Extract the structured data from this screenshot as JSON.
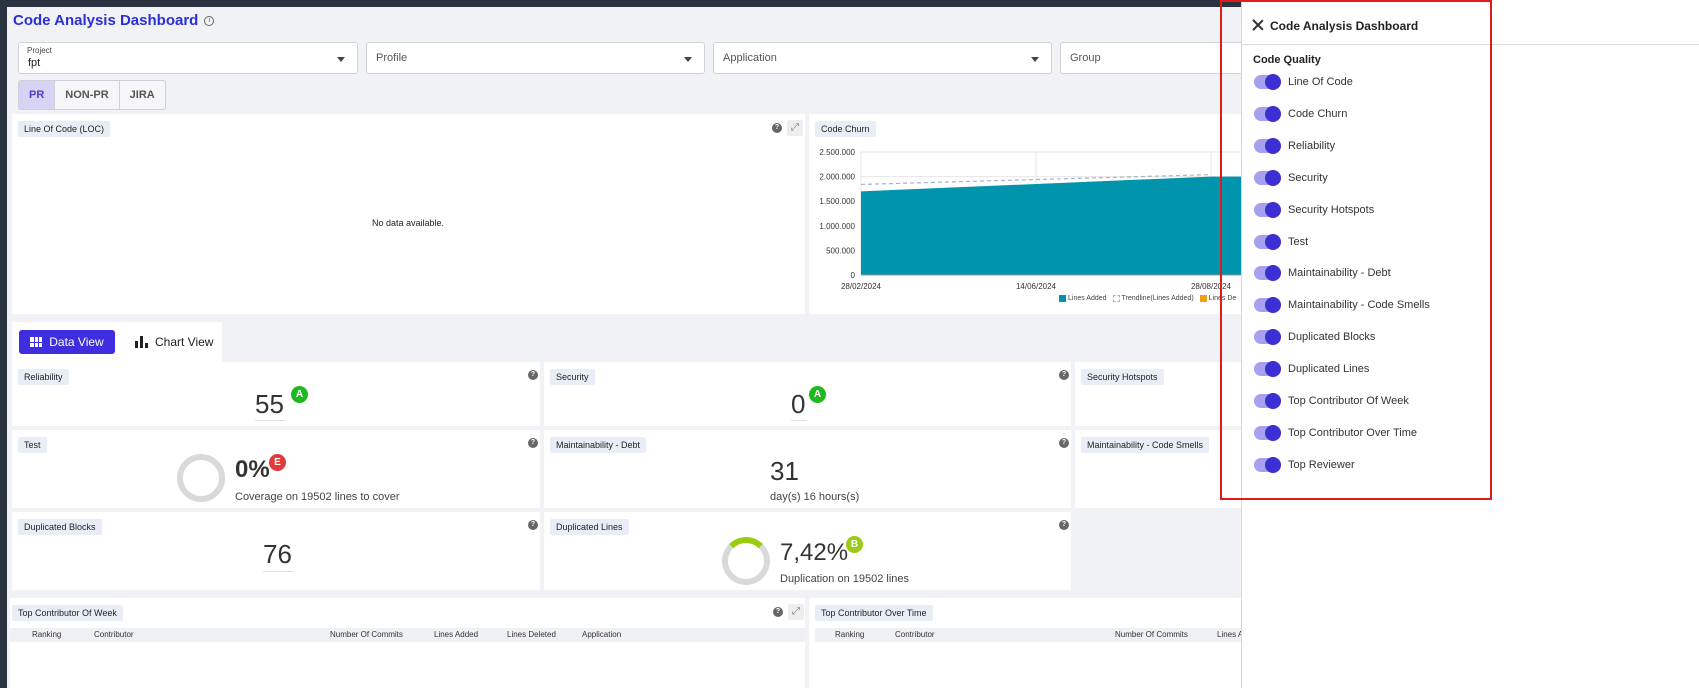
{
  "header": {
    "title": "Code Analysis Dashboard",
    "info_icon": "info-icon"
  },
  "filters": {
    "project": {
      "label": "Project",
      "value": "fpt"
    },
    "profile": {
      "placeholder": "Profile"
    },
    "application": {
      "placeholder": "Application"
    },
    "group": {
      "placeholder": "Group"
    }
  },
  "segments": [
    "PR",
    "NON-PR",
    "JIRA"
  ],
  "loc_panel": {
    "tag": "Line Of Code (LOC)",
    "empty_text": "No data available."
  },
  "churn_panel": {
    "tag": "Code Churn",
    "legend": [
      "Lines Added",
      "Trendline(Lines Added)",
      "Lines De"
    ]
  },
  "view_toggle": {
    "data_view": "Data View",
    "chart_view": "Chart View"
  },
  "metrics": {
    "reliability": {
      "tag": "Reliability",
      "value": "55",
      "grade": "A"
    },
    "security": {
      "tag": "Security",
      "value": "0",
      "grade": "A"
    },
    "security_hotspots": {
      "tag": "Security Hotspots"
    },
    "test": {
      "tag": "Test",
      "value": "0%",
      "grade": "E",
      "sub": "Coverage on 19502 lines to cover"
    },
    "maint_debt": {
      "tag": "Maintainability - Debt",
      "value": "31",
      "sub": "day(s) 16 hours(s)"
    },
    "maint_smells": {
      "tag": "Maintainability - Code Smells"
    },
    "dup_blocks": {
      "tag": "Duplicated Blocks",
      "value": "76"
    },
    "dup_lines": {
      "tag": "Duplicated Lines",
      "value": "7,42%",
      "grade": "B",
      "sub": "Duplication on 19502 lines"
    }
  },
  "grade_colors": {
    "A": "#1fb81f",
    "B": "#9acd12",
    "E": "#e03a3a"
  },
  "bottom": {
    "week_tag": "Top Contributor Of Week",
    "overtime_tag": "Top Contributor Over Time",
    "week_headers": [
      "Ranking",
      "Contributor",
      "Number Of Commits",
      "Lines Added",
      "Lines Deleted",
      "Application"
    ],
    "overtime_headers": [
      "Ranking",
      "Contributor",
      "Number Of Commits",
      "Lines A"
    ]
  },
  "drawer": {
    "title": "Code Analysis Dashboard",
    "section": "Code Quality",
    "items": [
      "Line Of Code",
      "Code Churn",
      "Reliability",
      "Security",
      "Security Hotspots",
      "Test",
      "Maintainability - Debt",
      "Maintainability - Code Smells",
      "Duplicated Blocks",
      "Duplicated Lines",
      "Top Contributor Of Week",
      "Top Contributor Over Time",
      "Top Reviewer"
    ]
  },
  "chart_data": {
    "type": "area",
    "title": "Code Churn",
    "x": [
      "28/02/2024",
      "14/06/2024",
      "28/08/2024"
    ],
    "y_ticks": [
      "2.500.000",
      "2.000.000",
      "1.500.000",
      "1.000.000",
      "500.000",
      "0"
    ],
    "ylim": [
      0,
      2500000
    ],
    "series": [
      {
        "name": "Lines Added",
        "values": [
          1700000,
          1850000,
          2000000
        ]
      },
      {
        "name": "Trendline(Lines Added)",
        "values": [
          1800000,
          1900000,
          2000000
        ]
      }
    ],
    "colors": {
      "Lines Added": "#0095ad",
      "trend": "#9fb6c8",
      "Lines Deleted": "#f39c12"
    }
  }
}
